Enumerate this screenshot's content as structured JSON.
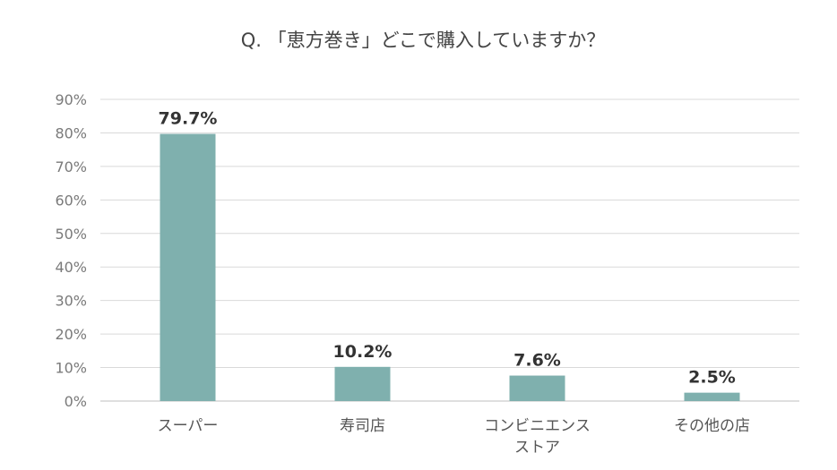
{
  "chart_data": {
    "type": "bar",
    "title": "Q. 「恵方巻き」どこで購入していますか？",
    "categories": [
      [
        "スーパー"
      ],
      [
        "寿司店"
      ],
      [
        "コンビニエンス",
        "ストア"
      ],
      [
        "その他の店"
      ]
    ],
    "values": [
      79.7,
      10.2,
      7.6,
      2.5
    ],
    "data_labels": [
      "79.7%",
      "10.2%",
      "7.6%",
      "2.5%"
    ],
    "xlabel": "",
    "ylabel": "",
    "ylim": [
      0,
      90
    ],
    "yticks": [
      "0%",
      "10%",
      "20%",
      "30%",
      "40%",
      "50%",
      "60%",
      "70%",
      "80%",
      "90%"
    ],
    "grid": true,
    "legend": "none",
    "colors": {
      "bar": "#7fb0ae",
      "grid": "#d9d9d9",
      "axis": "#bfbfbf"
    }
  }
}
